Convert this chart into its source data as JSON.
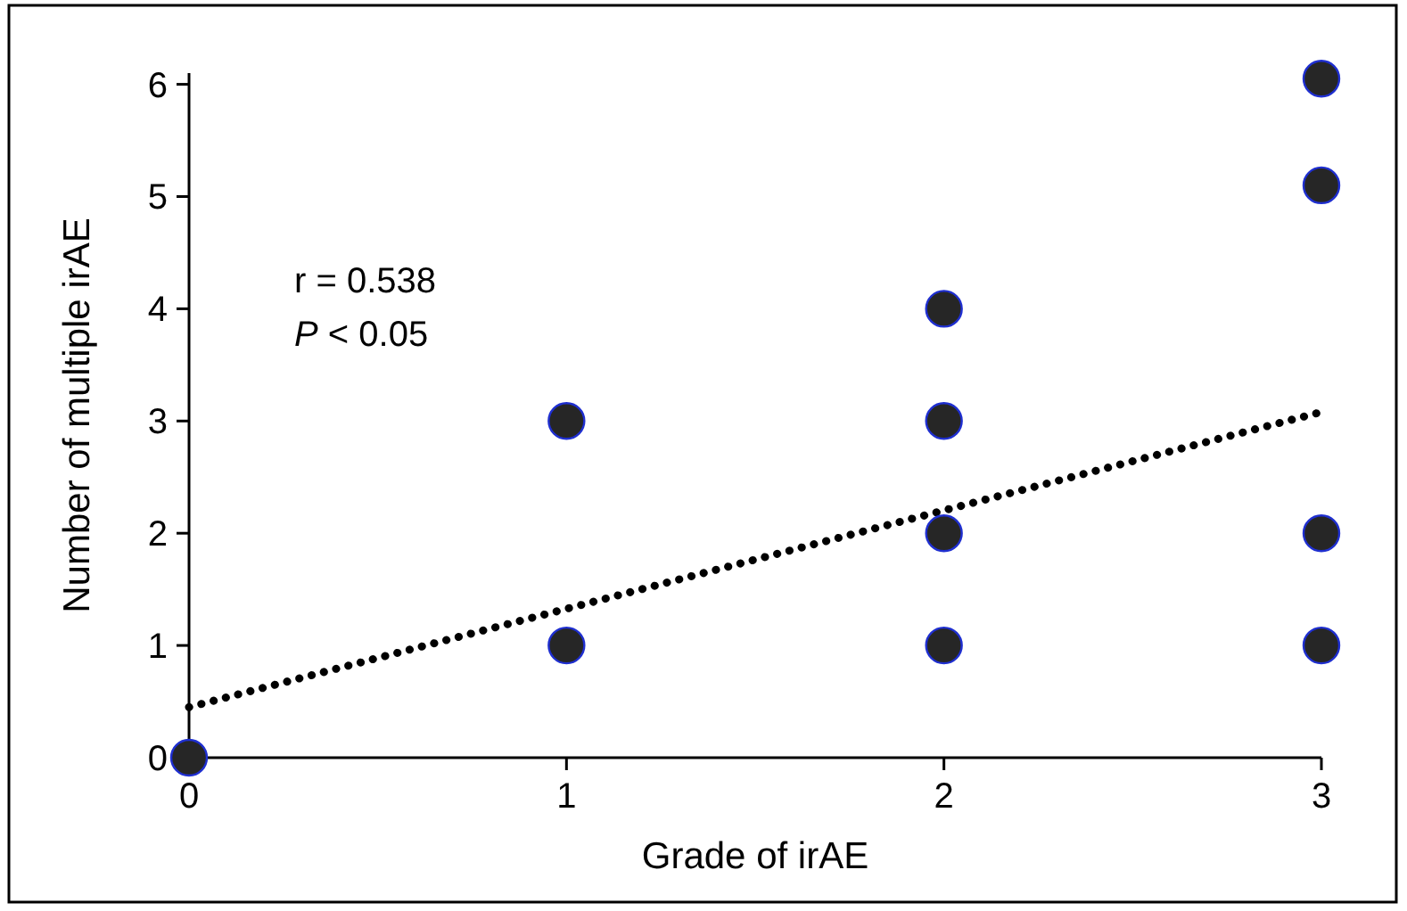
{
  "chart_data": {
    "type": "scatter",
    "xlabel": "Grade of irAE",
    "ylabel": "Number of multiple irAE",
    "xlim": [
      0,
      3
    ],
    "ylim": [
      0,
      6.1
    ],
    "xticks": [
      0,
      1,
      2,
      3
    ],
    "yticks": [
      0,
      1,
      2,
      3,
      4,
      5,
      6
    ],
    "marker": "circle",
    "grid": false,
    "annotations": [
      "r = 0.538",
      "P < 0.05"
    ],
    "series": [
      {
        "color": "#262626",
        "x": [
          0,
          1,
          1,
          2,
          2,
          2,
          2,
          3,
          3,
          3,
          3
        ],
        "values": [
          0,
          1,
          3,
          1,
          2,
          3,
          4,
          1,
          2,
          5.1,
          6.05
        ]
      },
      {
        "type": "line",
        "color": "#000000",
        "line_style": "dotted",
        "marker": "none",
        "x": [
          0,
          3
        ],
        "values": [
          0.45,
          3.08
        ]
      }
    ]
  }
}
